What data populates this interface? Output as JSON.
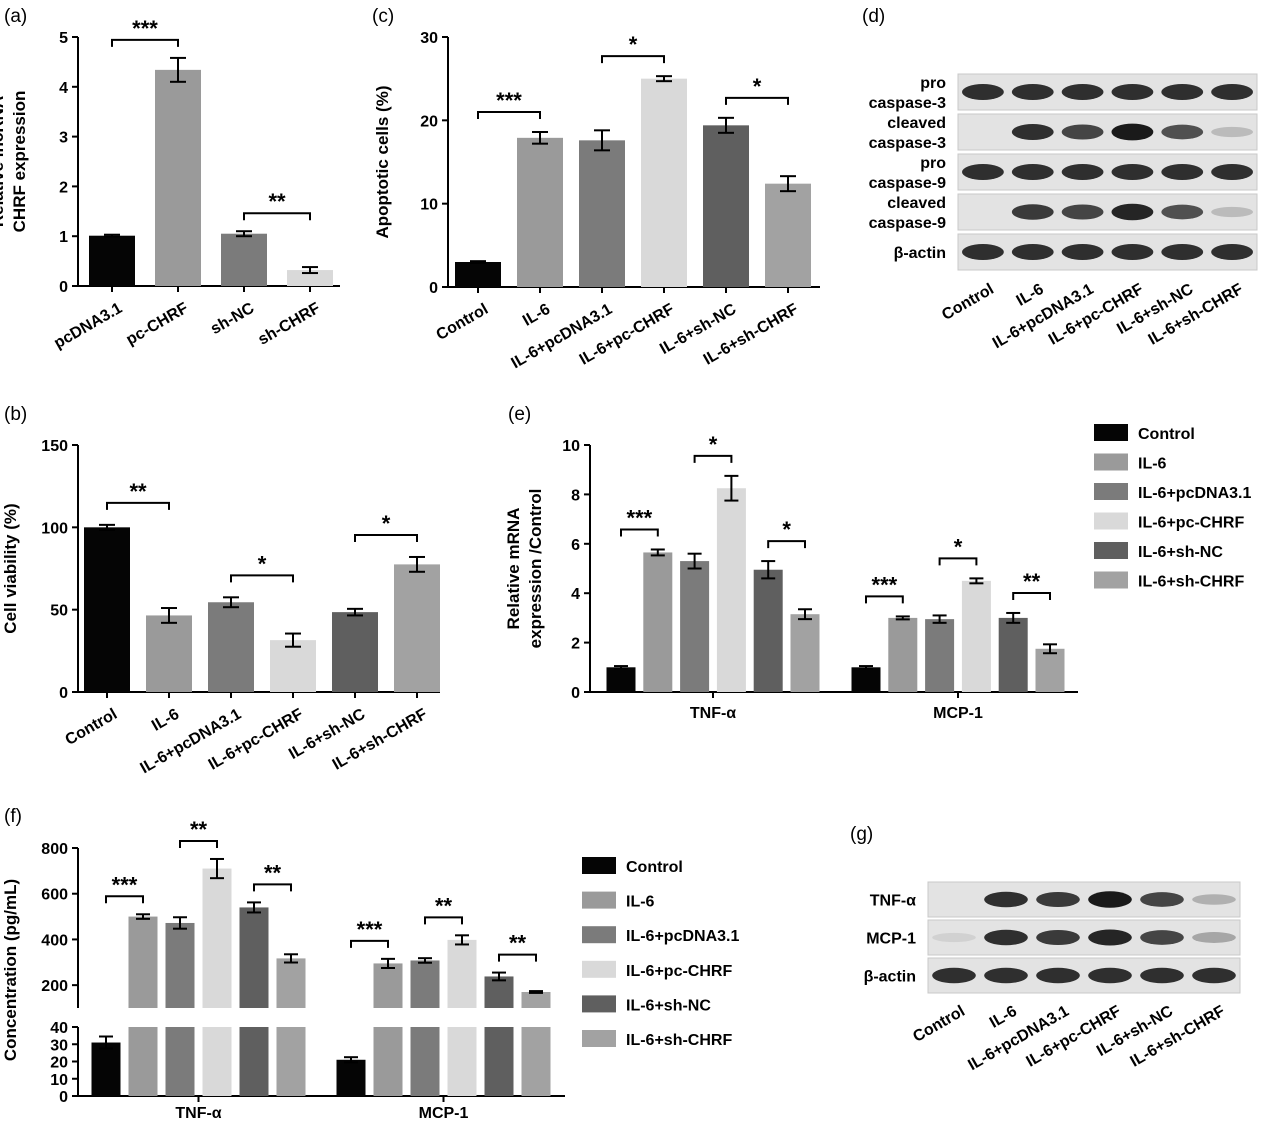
{
  "colors": {
    "Control": "#050505",
    "IL-6": "#9a9a9a",
    "IL-6+pcDNA3.1": "#7b7b7b",
    "IL-6+pc-CHRF": "#d9d9d9",
    "IL-6+sh-NC": "#5f5f5f",
    "IL-6+sh-CHRF": "#a2a2a2"
  },
  "legend_groups": [
    "Control",
    "IL-6",
    "IL-6+pcDNA3.1",
    "IL-6+pc-CHRF",
    "IL-6+sh-NC",
    "IL-6+sh-CHRF"
  ],
  "chart_data": [
    {
      "panel": "(a)",
      "type": "bar",
      "categories": [
        "pcDNA3.1",
        "pc-CHRF",
        "sh-NC",
        "sh-CHRF"
      ],
      "values": [
        1.01,
        4.34,
        1.05,
        0.32
      ],
      "errors": [
        0.02,
        0.24,
        0.05,
        0.06
      ],
      "bar_colors": [
        "#050505",
        "#9a9a9a",
        "#7b7b7b",
        "#d9d9d9"
      ],
      "ylabel_lines": [
        "Relative lncRNA",
        "CHRF expression"
      ],
      "ylim": [
        0,
        5
      ],
      "yticks": [
        0,
        1,
        2,
        3,
        4,
        5
      ],
      "significance": [
        {
          "from": 0,
          "to": 1,
          "label": "***"
        },
        {
          "from": 2,
          "to": 3,
          "label": "**"
        }
      ]
    },
    {
      "panel": "(b)",
      "type": "bar",
      "categories": [
        "Control",
        "IL-6",
        "IL-6+pcDNA3.1",
        "IL-6+pc-CHRF",
        "IL-6+sh-NC",
        "IL-6+sh-CHRF"
      ],
      "values": [
        100,
        46.5,
        54.5,
        31.5,
        48.5,
        77.5
      ],
      "errors": [
        1.5,
        4.5,
        3,
        4,
        2,
        4.5
      ],
      "ylabel_lines": [
        "Cell viability (%)"
      ],
      "ylim": [
        0,
        150
      ],
      "yticks": [
        0,
        50,
        100,
        150
      ],
      "significance": [
        {
          "from": 0,
          "to": 1,
          "label": "**"
        },
        {
          "from": 2,
          "to": 3,
          "label": "*"
        },
        {
          "from": 4,
          "to": 5,
          "label": "*"
        }
      ]
    },
    {
      "panel": "(c)",
      "type": "bar",
      "categories": [
        "Control",
        "IL-6",
        "IL-6+pcDNA3.1",
        "IL-6+pc-CHRF",
        "IL-6+sh-NC",
        "IL-6+sh-CHRF"
      ],
      "values": [
        3.0,
        17.9,
        17.6,
        25.0,
        19.4,
        12.4
      ],
      "errors": [
        0.1,
        0.7,
        1.2,
        0.3,
        0.9,
        0.9
      ],
      "ylabel_lines": [
        "Apoptotic cells (%)"
      ],
      "ylim": [
        0,
        30
      ],
      "yticks": [
        0,
        10,
        20,
        30
      ],
      "significance": [
        {
          "from": 0,
          "to": 1,
          "label": "***"
        },
        {
          "from": 2,
          "to": 3,
          "label": "*"
        },
        {
          "from": 4,
          "to": 5,
          "label": "*"
        }
      ]
    },
    {
      "panel": "(e)",
      "type": "bar",
      "categories": [
        "TNF-α",
        "MCP-1"
      ],
      "series": [
        {
          "name": "Control",
          "values": [
            1.0,
            1.0
          ],
          "errors": [
            0.05,
            0.05
          ]
        },
        {
          "name": "IL-6",
          "values": [
            5.65,
            3.0
          ],
          "errors": [
            0.12,
            0.06
          ]
        },
        {
          "name": "IL-6+pcDNA3.1",
          "values": [
            5.3,
            2.95
          ],
          "errors": [
            0.3,
            0.15
          ]
        },
        {
          "name": "IL-6+pc-CHRF",
          "values": [
            8.25,
            4.5
          ],
          "errors": [
            0.5,
            0.1
          ]
        },
        {
          "name": "IL-6+sh-NC",
          "values": [
            4.95,
            3.0
          ],
          "errors": [
            0.35,
            0.2
          ]
        },
        {
          "name": "IL-6+sh-CHRF",
          "values": [
            3.15,
            1.75
          ],
          "errors": [
            0.2,
            0.18
          ]
        }
      ],
      "ylabel_lines": [
        "Relative mRNA",
        "expression /Control"
      ],
      "ylim": [
        0,
        10
      ],
      "yticks": [
        0,
        2,
        4,
        6,
        8,
        10
      ],
      "significance": [
        {
          "group": 0,
          "from": 0,
          "to": 1,
          "label": "***"
        },
        {
          "group": 0,
          "from": 2,
          "to": 3,
          "label": "*"
        },
        {
          "group": 0,
          "from": 4,
          "to": 5,
          "label": "*"
        },
        {
          "group": 1,
          "from": 0,
          "to": 1,
          "label": "***"
        },
        {
          "group": 1,
          "from": 2,
          "to": 3,
          "label": "*"
        },
        {
          "group": 1,
          "from": 4,
          "to": 5,
          "label": "**"
        }
      ]
    },
    {
      "panel": "(f)",
      "type": "bar",
      "categories": [
        "TNF-α",
        "MCP-1"
      ],
      "series": [
        {
          "name": "Control",
          "values": [
            31,
            21
          ],
          "errors": [
            3.5,
            1.5
          ]
        },
        {
          "name": "IL-6",
          "values": [
            500,
            295
          ],
          "errors": [
            10,
            20
          ]
        },
        {
          "name": "IL-6+pcDNA3.1",
          "values": [
            472,
            308
          ],
          "errors": [
            25,
            10
          ]
        },
        {
          "name": "IL-6+pc-CHRF",
          "values": [
            710,
            398
          ],
          "errors": [
            42,
            20
          ]
        },
        {
          "name": "IL-6+sh-NC",
          "values": [
            540,
            238
          ],
          "errors": [
            22,
            17
          ]
        },
        {
          "name": "IL-6+sh-CHRF",
          "values": [
            317,
            170
          ],
          "errors": [
            18,
            4
          ]
        }
      ],
      "ylabel_lines": [
        "Concentration (pg/mL)"
      ],
      "broken_axis": {
        "lower_range": [
          0,
          40
        ],
        "lower_ticks": [
          0,
          10,
          20,
          30,
          40
        ],
        "upper_range": [
          100,
          800
        ],
        "upper_ticks": [
          200,
          400,
          600,
          800
        ]
      },
      "significance": [
        {
          "group": 0,
          "from": 0,
          "to": 1,
          "label": "***"
        },
        {
          "group": 0,
          "from": 2,
          "to": 3,
          "label": "**"
        },
        {
          "group": 0,
          "from": 4,
          "to": 5,
          "label": "**"
        },
        {
          "group": 1,
          "from": 0,
          "to": 1,
          "label": "***"
        },
        {
          "group": 1,
          "from": 2,
          "to": 3,
          "label": "**"
        },
        {
          "group": 1,
          "from": 4,
          "to": 5,
          "label": "**"
        }
      ]
    }
  ],
  "blots": [
    {
      "panel": "(d)",
      "rows": [
        {
          "label_lines": [
            "pro",
            "caspase-3"
          ],
          "intensity": [
            0.85,
            0.85,
            0.85,
            0.85,
            0.85,
            0.85
          ]
        },
        {
          "label_lines": [
            "cleaved",
            "caspase-3"
          ],
          "intensity": [
            0.0,
            0.85,
            0.75,
            0.95,
            0.7,
            0.2
          ]
        },
        {
          "label_lines": [
            "pro",
            "caspase-9"
          ],
          "intensity": [
            0.85,
            0.85,
            0.85,
            0.85,
            0.85,
            0.85
          ]
        },
        {
          "label_lines": [
            "cleaved",
            "caspase-9"
          ],
          "intensity": [
            0.0,
            0.8,
            0.75,
            0.9,
            0.7,
            0.2
          ]
        },
        {
          "label_lines": [
            "β-actin"
          ],
          "intensity": [
            0.85,
            0.85,
            0.85,
            0.85,
            0.85,
            0.85
          ]
        }
      ],
      "lanes": [
        "Control",
        "IL-6",
        "IL-6+pcDNA3.1",
        "IL-6+pc-CHRF",
        "IL-6+sh-NC",
        "IL-6+sh-CHRF"
      ]
    },
    {
      "panel": "(g)",
      "rows": [
        {
          "label_lines": [
            "TNF-α"
          ],
          "intensity": [
            0.0,
            0.85,
            0.8,
            0.95,
            0.75,
            0.25
          ]
        },
        {
          "label_lines": [
            "MCP-1"
          ],
          "intensity": [
            0.1,
            0.85,
            0.8,
            0.9,
            0.75,
            0.3
          ]
        },
        {
          "label_lines": [
            "β-actin"
          ],
          "intensity": [
            0.85,
            0.85,
            0.85,
            0.85,
            0.85,
            0.85
          ]
        }
      ],
      "lanes": [
        "Control",
        "IL-6",
        "IL-6+pcDNA3.1",
        "IL-6+pc-CHRF",
        "IL-6+sh-NC",
        "IL-6+sh-CHRF"
      ]
    }
  ]
}
